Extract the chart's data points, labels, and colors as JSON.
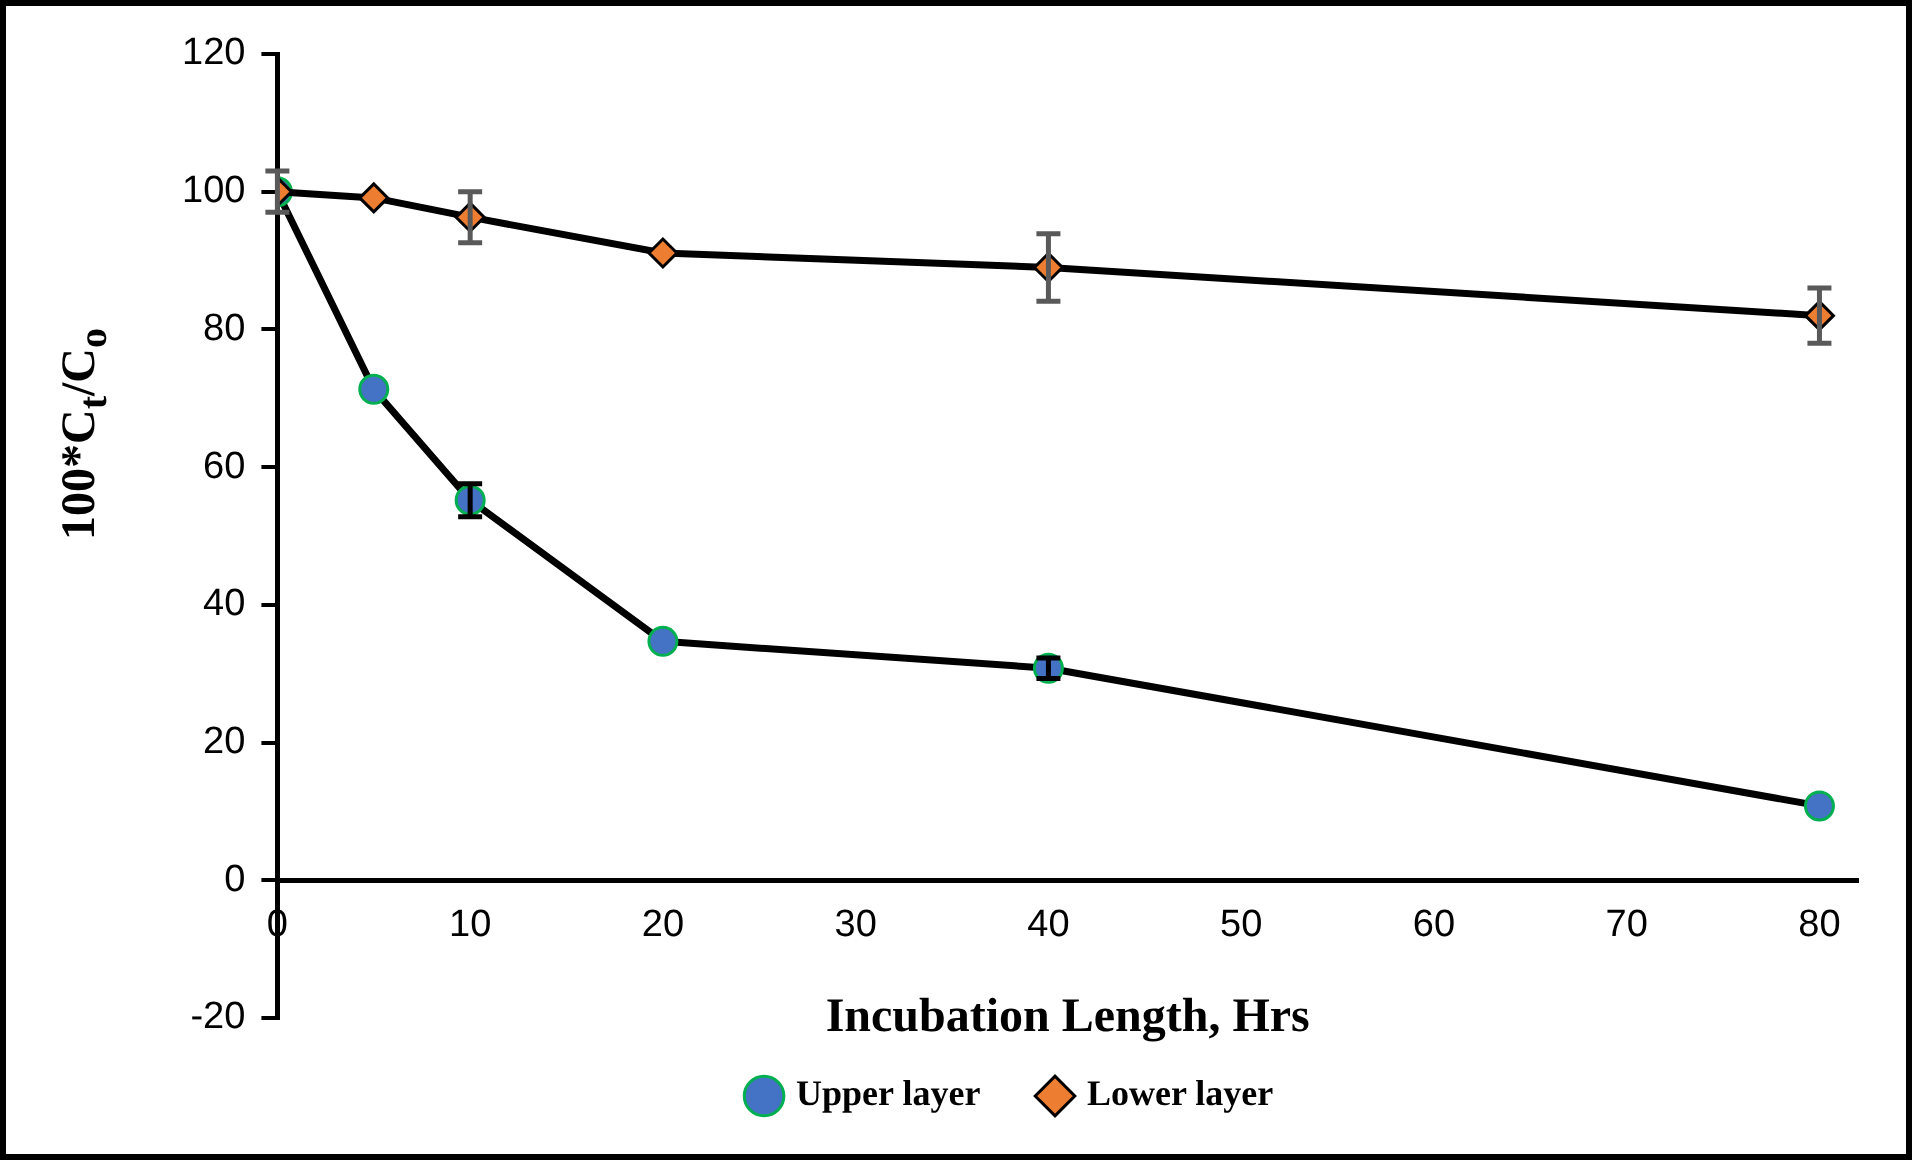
{
  "chart_data": {
    "type": "line",
    "xlabel": "Incubation Length, Hrs",
    "ylabel": "100*C$_{t}$/C$_{o}$",
    "xlim": [
      0,
      82
    ],
    "xticks": [
      0,
      10,
      20,
      30,
      40,
      50,
      60,
      70,
      80
    ],
    "ylim": [
      -20,
      120
    ],
    "yticks": [
      -20,
      0,
      20,
      40,
      60,
      80,
      100,
      120
    ],
    "x": [
      0,
      5,
      10,
      20,
      40,
      80
    ],
    "series": [
      {
        "name": "Upper layer",
        "color": "#4472c4",
        "marker": "circle",
        "values": [
          100,
          71.3,
          55.2,
          34.7,
          30.8,
          10.8
        ],
        "errors": [
          null,
          null,
          2.4,
          null,
          1.5,
          null
        ]
      },
      {
        "name": "Lower layer",
        "color": "#ed7d31",
        "marker": "diamond",
        "values": [
          100,
          99.1,
          96.3,
          91.1,
          89,
          82
        ],
        "errors": [
          3,
          null,
          3.7,
          null,
          4.9,
          4
        ]
      }
    ],
    "grid": false,
    "legend": "bottom",
    "line_style": "solid"
  }
}
